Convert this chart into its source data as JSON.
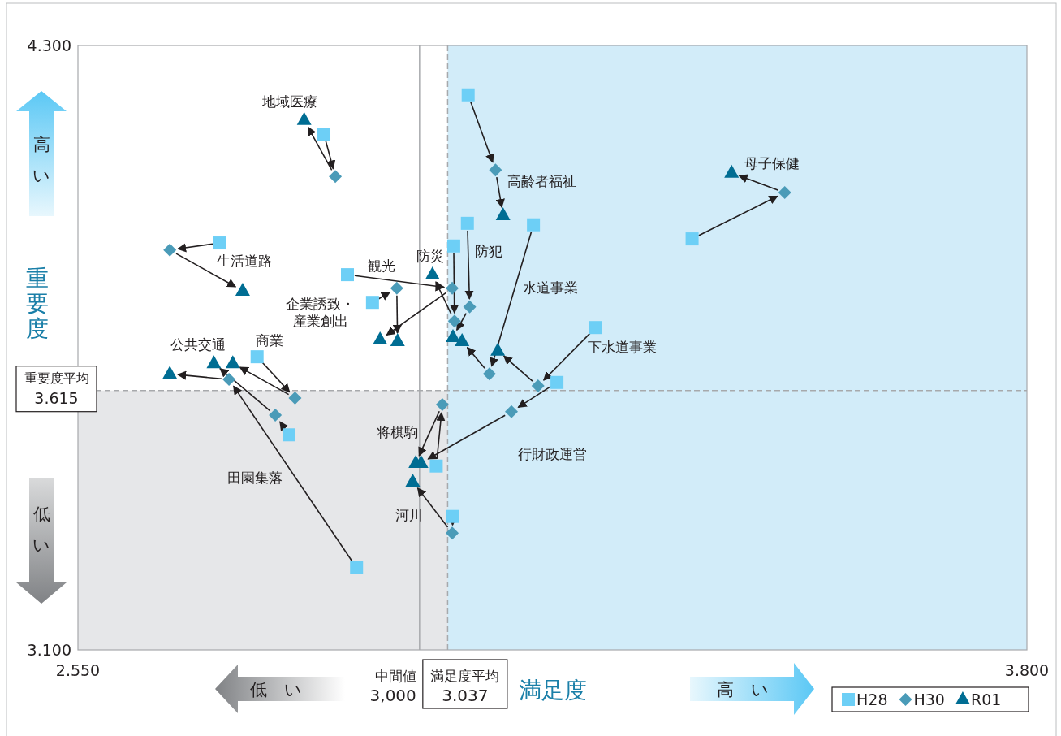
{
  "chart_data": {
    "type": "scatter",
    "xlabel": "満足度",
    "ylabel": "重要度",
    "xlim": [
      2.55,
      3.8
    ],
    "ylim": [
      3.1,
      4.3
    ],
    "xticks": [
      {
        "value": 2.55,
        "label": "2.550"
      },
      {
        "value": 3.8,
        "label": "3.800"
      }
    ],
    "yticks": [
      {
        "value": 3.1,
        "label": "3.100"
      },
      {
        "value": 4.3,
        "label": "4.300"
      }
    ],
    "legend": "bottom right",
    "series": [
      {
        "name": "H28",
        "color": "#6dcff6",
        "marker": "square",
        "x": [
          2.874,
          3.064,
          3.359,
          2.737,
          2.905,
          2.938,
          3.045,
          3.063,
          3.15,
          3.232,
          3.181,
          3.022,
          3.044,
          2.786,
          2.828,
          2.917
        ],
        "values": [
          4.124,
          4.202,
          3.916,
          3.908,
          3.845,
          3.79,
          3.902,
          3.947,
          3.944,
          3.74,
          3.631,
          3.465,
          3.365,
          3.682,
          3.527,
          3.263
        ]
      },
      {
        "name": "H30",
        "color": "#4a9bb8",
        "marker": "diamond",
        "x": [
          2.889,
          3.1,
          3.481,
          2.671,
          3.043,
          2.97,
          3.046,
          3.066,
          3.092,
          3.156,
          3.121,
          3.03,
          3.043,
          2.836,
          2.81,
          2.749
        ],
        "values": [
          4.04,
          4.053,
          4.008,
          3.894,
          3.818,
          3.818,
          3.753,
          3.781,
          3.648,
          3.624,
          3.573,
          3.587,
          3.332,
          3.6,
          3.566,
          3.637
        ]
      },
      {
        "name": "R01",
        "color": "#006d93",
        "marker": "triangle",
        "x": [
          2.848,
          3.11,
          3.411,
          2.767,
          2.948,
          2.971,
          3.017,
          3.044,
          3.056,
          3.103,
          3.002,
          2.995,
          2.991,
          2.754,
          2.729,
          2.671
        ],
        "values": [
          4.152,
          3.963,
          4.047,
          3.813,
          3.716,
          3.713,
          3.845,
          3.721,
          3.713,
          3.694,
          3.471,
          3.471,
          3.434,
          3.669,
          3.669,
          3.648
        ]
      }
    ],
    "ref_lines": [
      {
        "axis": "x",
        "value": 3.0,
        "label": "中間値\n3,000",
        "color": "#a7a9ac",
        "line_style": "solid"
      },
      {
        "axis": "x",
        "value": 3.037,
        "label": "満足度平均\n3.037",
        "color": "#a7a9ac",
        "line_style": "dashed"
      },
      {
        "axis": "y",
        "value": 3.615,
        "label": "重要度平均\n3.615",
        "color": "#a7a9ac",
        "line_style": "dashed"
      }
    ],
    "bands": [
      {
        "axis": "y",
        "from": 3.1,
        "to": 3.615,
        "color": "#e6e7e9"
      },
      {
        "axis": "x",
        "from": 3.037,
        "to": 3.8,
        "color": "#d2ecf9"
      }
    ],
    "annotations": [
      {
        "text": "地域医療",
        "x": 2.848,
        "y": 4.152
      },
      {
        "text": "高齢者福祉",
        "x": 3.1,
        "y": 4.053
      },
      {
        "text": "母子保健",
        "x": 3.411,
        "y": 4.047
      },
      {
        "text": "生活道路",
        "x": 2.737,
        "y": 3.908
      },
      {
        "text": "観光",
        "x": 2.905,
        "y": 3.845
      },
      {
        "text": "企業誘致・産業創出",
        "x": 2.938,
        "y": 3.79
      },
      {
        "text": "防災",
        "x": 3.017,
        "y": 3.845
      },
      {
        "text": "防犯",
        "x": 3.063,
        "y": 3.947
      },
      "水道事業",
      {
        "text": "下水道事業",
        "x": 3.232,
        "y": 3.74
      },
      {
        "text": "行財政運営",
        "x": 3.121,
        "y": 3.573
      },
      {
        "text": "将棋駒",
        "x": 2.995,
        "y": 3.471
      },
      {
        "text": "河川",
        "x": 2.991,
        "y": 3.434
      },
      {
        "text": "商業",
        "x": 2.786,
        "y": 3.682
      },
      {
        "text": "公共交通",
        "x": 2.729,
        "y": 3.669
      },
      "田園集落",
      "高い",
      "低い",
      "低　い",
      "高　い"
    ]
  }
}
